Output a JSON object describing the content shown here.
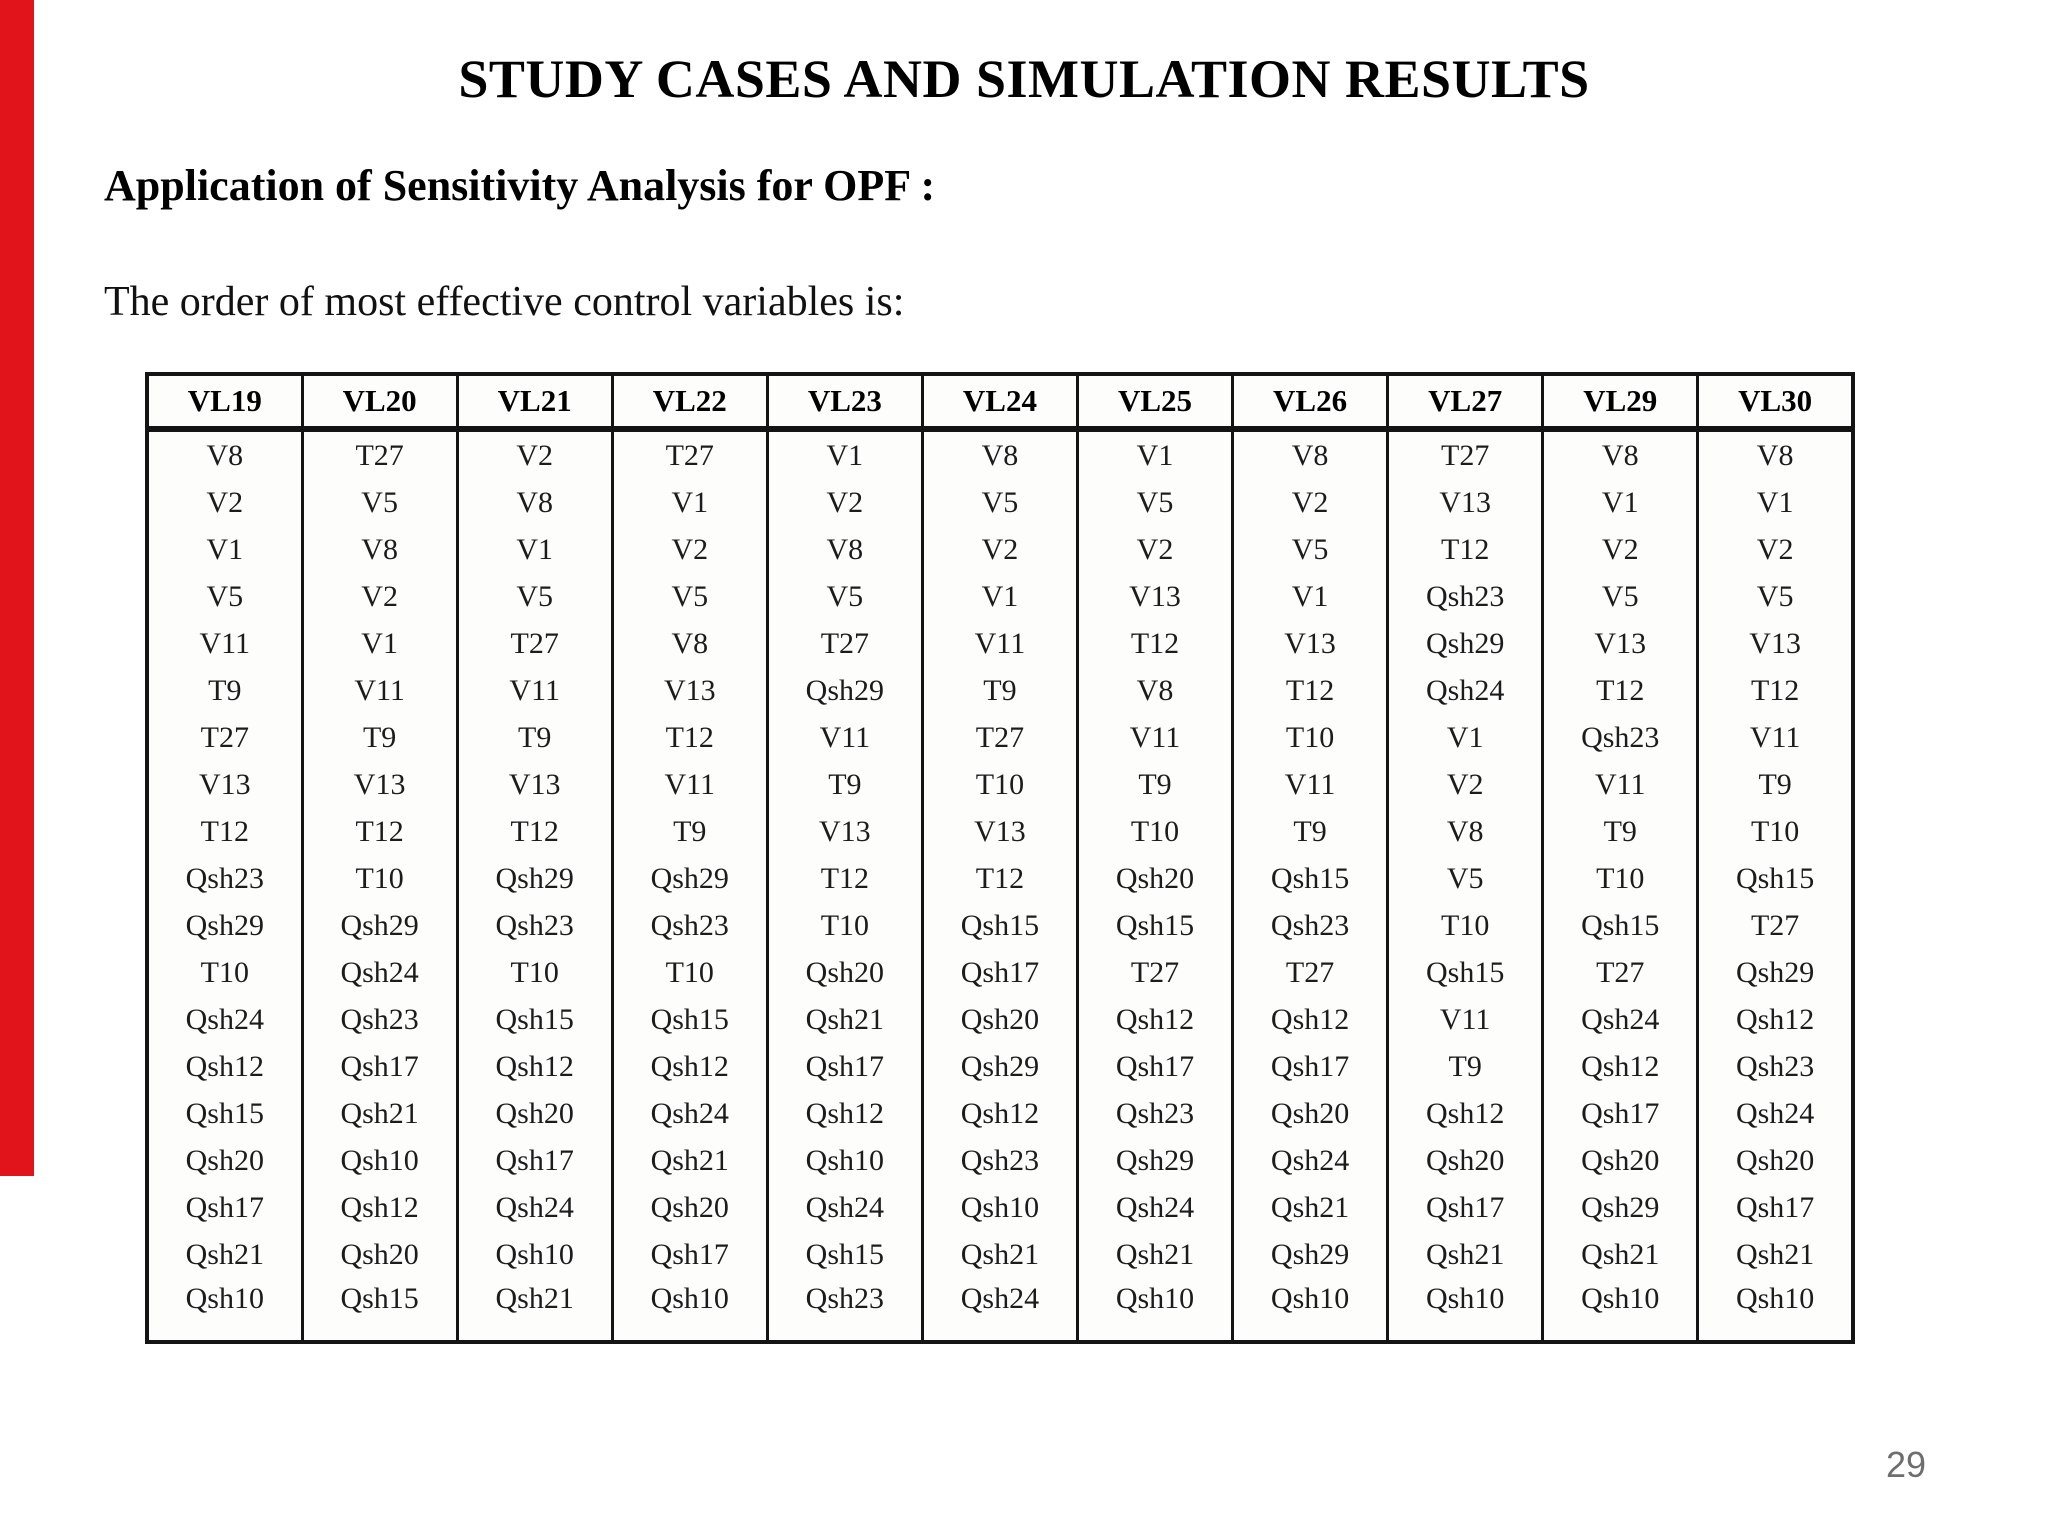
{
  "colors": {
    "accent_bar": "#e2141b",
    "page_number": "#6e6e6e",
    "table_border": "#141414",
    "text": "#1c1c1c"
  },
  "slide": {
    "title": "STUDY CASES AND SIMULATION RESULTS",
    "subtitle": "Application of Sensitivity Analysis for OPF :",
    "intro": "The order of most effective control variables is:",
    "page_number": "29"
  },
  "table": {
    "headers": [
      "VL19",
      "VL20",
      "VL21",
      "VL22",
      "VL23",
      "VL24",
      "VL25",
      "VL26",
      "VL27",
      "VL29",
      "VL30"
    ],
    "columns": [
      {
        "header": "VL19",
        "values": [
          "V8",
          "V2",
          "V1",
          "V5",
          "V11",
          "T9",
          "T27",
          "V13",
          "T12",
          "Qsh23",
          "Qsh29",
          "T10",
          "Qsh24",
          "Qsh12",
          "Qsh15",
          "Qsh20",
          "Qsh17",
          "Qsh21",
          "Qsh10"
        ]
      },
      {
        "header": "VL20",
        "values": [
          "T27",
          "V5",
          "V8",
          "V2",
          "V1",
          "V11",
          "T9",
          "V13",
          "T12",
          "T10",
          "Qsh29",
          "Qsh24",
          "Qsh23",
          "Qsh17",
          "Qsh21",
          "Qsh10",
          "Qsh12",
          "Qsh20",
          "Qsh15"
        ]
      },
      {
        "header": "VL21",
        "values": [
          "V2",
          "V8",
          "V1",
          "V5",
          "T27",
          "V11",
          "T9",
          "V13",
          "T12",
          "Qsh29",
          "Qsh23",
          "T10",
          "Qsh15",
          "Qsh12",
          "Qsh20",
          "Qsh17",
          "Qsh24",
          "Qsh10",
          "Qsh21"
        ]
      },
      {
        "header": "VL22",
        "values": [
          "T27",
          "V1",
          "V2",
          "V5",
          "V8",
          "V13",
          "T12",
          "V11",
          "T9",
          "Qsh29",
          "Qsh23",
          "T10",
          "Qsh15",
          "Qsh12",
          "Qsh24",
          "Qsh21",
          "Qsh20",
          "Qsh17",
          "Qsh10"
        ]
      },
      {
        "header": "VL23",
        "values": [
          "V1",
          "V2",
          "V8",
          "V5",
          "T27",
          "Qsh29",
          "V11",
          "T9",
          "V13",
          "T12",
          "T10",
          "Qsh20",
          "Qsh21",
          "Qsh17",
          "Qsh12",
          "Qsh10",
          "Qsh24",
          "Qsh15",
          "Qsh23"
        ]
      },
      {
        "header": "VL24",
        "values": [
          "V8",
          "V5",
          "V2",
          "V1",
          "V11",
          "T9",
          "T27",
          "T10",
          "V13",
          "T12",
          "Qsh15",
          "Qsh17",
          "Qsh20",
          "Qsh29",
          "Qsh12",
          "Qsh23",
          "Qsh10",
          "Qsh21",
          "Qsh24"
        ]
      },
      {
        "header": "VL25",
        "values": [
          "V1",
          "V5",
          "V2",
          "V13",
          "T12",
          "V8",
          "V11",
          "T9",
          "T10",
          "Qsh20",
          "Qsh15",
          "T27",
          "Qsh12",
          "Qsh17",
          "Qsh23",
          "Qsh29",
          "Qsh24",
          "Qsh21",
          "Qsh10"
        ]
      },
      {
        "header": "VL26",
        "values": [
          "V8",
          "V2",
          "V5",
          "V1",
          "V13",
          "T12",
          "T10",
          "V11",
          "T9",
          "Qsh15",
          "Qsh23",
          "T27",
          "Qsh12",
          "Qsh17",
          "Qsh20",
          "Qsh24",
          "Qsh21",
          "Qsh29",
          "Qsh10"
        ]
      },
      {
        "header": "VL27",
        "values": [
          "T27",
          "V13",
          "T12",
          "Qsh23",
          "Qsh29",
          "Qsh24",
          "V1",
          "V2",
          "V8",
          "V5",
          "T10",
          "Qsh15",
          "V11",
          "T9",
          "Qsh12",
          "Qsh20",
          "Qsh17",
          "Qsh21",
          "Qsh10"
        ]
      },
      {
        "header": "VL29",
        "values": [
          "V8",
          "V1",
          "V2",
          "V5",
          "V13",
          "T12",
          "Qsh23",
          "V11",
          "T9",
          "T10",
          "Qsh15",
          "T27",
          "Qsh24",
          "Qsh12",
          "Qsh17",
          "Qsh20",
          "Qsh29",
          "Qsh21",
          "Qsh10"
        ]
      },
      {
        "header": "VL30",
        "values": [
          "V8",
          "V1",
          "V2",
          "V5",
          "V13",
          "T12",
          "V11",
          "T9",
          "T10",
          "Qsh15",
          "T27",
          "Qsh29",
          "Qsh12",
          "Qsh23",
          "Qsh24",
          "Qsh20",
          "Qsh17",
          "Qsh21",
          "Qsh10"
        ]
      }
    ]
  }
}
